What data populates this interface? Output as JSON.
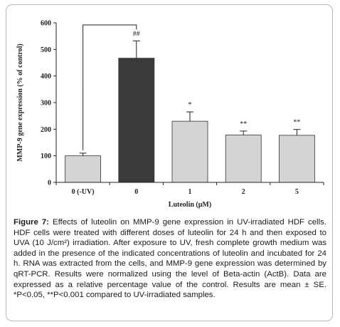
{
  "chart_data": {
    "type": "bar",
    "categories": [
      "0 (-UV)",
      "0",
      "1",
      "2",
      "5"
    ],
    "values": [
      100,
      467,
      230,
      178,
      177
    ],
    "errors": [
      10,
      65,
      35,
      15,
      22
    ],
    "significance": [
      "",
      "##",
      "*",
      "**",
      "**"
    ],
    "ylabel": "MMP-9 gene expression (% of control)",
    "xlabel": "Luteolin (μM)",
    "ylim": [
      0,
      600
    ],
    "yticks": [
      0,
      100,
      200,
      300,
      400,
      500,
      600
    ],
    "bar_colors": [
      "#d4d4d4",
      "#3a3a3a",
      "#d4d4d4",
      "#d4d4d4",
      "#d4d4d4"
    ],
    "bracket": {
      "from": 0,
      "to": 1
    },
    "grid": false,
    "legend": "none"
  },
  "caption": {
    "label": "Figure 7:",
    "text": " Effects of luteolin on MMP-9 gene expression in UV-irradiated HDF cells. HDF cells were treated with different doses of luteolin for 24 h and then exposed to UVA (10 J/cm²) irradiation. After exposure to UV, fresh complete growth medium was added in the presence of the indicated concentrations of luteolin and incubated for 24 h. RNA was extracted from the cells, and MMP-9 gene expression was determined by qRT-PCR. Results were normalized using the level of Beta-actin (ActB). Data are expressed as a relative percentage value of the control. Results are mean ± SE. *P<0.05, **P<0.001 compared to UV-irradiated samples."
  }
}
